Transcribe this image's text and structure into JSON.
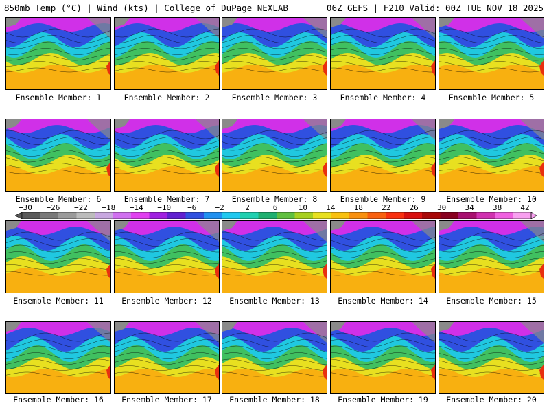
{
  "header": {
    "title_left": "850mb Temp (°C) | Wind (kts) | College of DuPage NEXLAB",
    "title_right": "06Z GEFS | F210 Valid: 00Z TUE NOV 18 2025"
  },
  "member_label_prefix": "Ensemble Member: ",
  "members": [
    {
      "label": "Ensemble Member: 1"
    },
    {
      "label": "Ensemble Member: 2"
    },
    {
      "label": "Ensemble Member: 3"
    },
    {
      "label": "Ensemble Member: 4"
    },
    {
      "label": "Ensemble Member: 5"
    },
    {
      "label": "Ensemble Member: 6"
    },
    {
      "label": "Ensemble Member: 7"
    },
    {
      "label": "Ensemble Member: 8"
    },
    {
      "label": "Ensemble Member: 9"
    },
    {
      "label": "Ensemble Member: 10"
    },
    {
      "label": "Ensemble Member: 11"
    },
    {
      "label": "Ensemble Member: 12"
    },
    {
      "label": "Ensemble Member: 13"
    },
    {
      "label": "Ensemble Member: 14"
    },
    {
      "label": "Ensemble Member: 15"
    },
    {
      "label": "Ensemble Member: 16"
    },
    {
      "label": "Ensemble Member: 17"
    },
    {
      "label": "Ensemble Member: 18"
    },
    {
      "label": "Ensemble Member: 19"
    },
    {
      "label": "Ensemble Member: 20"
    }
  ],
  "colorbar": {
    "tick_labels": [
      "−30",
      "−26",
      "−22",
      "−18",
      "−14",
      "−10",
      "−6",
      "−2",
      "2",
      "6",
      "10",
      "14",
      "18",
      "22",
      "26",
      "30",
      "34",
      "38",
      "42"
    ],
    "colors": [
      "#5a5a5a",
      "#7a7a7a",
      "#9b9b9b",
      "#bcbcbc",
      "#c8a8e0",
      "#d070f0",
      "#e040f0",
      "#a020e0",
      "#6020d0",
      "#3050e0",
      "#2090f0",
      "#20c8f0",
      "#20d0b0",
      "#20b070",
      "#60c040",
      "#a8d020",
      "#e8e020",
      "#f8c010",
      "#f89010",
      "#f86010",
      "#f83010",
      "#d81010",
      "#a80808",
      "#880020",
      "#a81070",
      "#d030b0",
      "#f060e0",
      "#f8a0f0"
    ]
  },
  "map_colors": {
    "polar": "#d030e8",
    "cold": "#3050e0",
    "cool": "#20c8e0",
    "mild": "#40c060",
    "warm": "#e8e020",
    "hot": "#f8b010",
    "land_gray": "#8a8a8a"
  }
}
